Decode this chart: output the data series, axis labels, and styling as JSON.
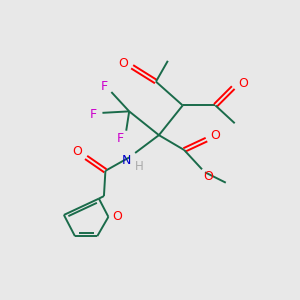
{
  "bg_color": "#e8e8e8",
  "bond_color": "#1a6b4a",
  "O_color": "#ff0000",
  "N_color": "#0000cc",
  "F_color": "#cc00cc",
  "H_color": "#aaaaaa",
  "figsize": [
    3.0,
    3.0
  ],
  "dpi": 100,
  "xlim": [
    0,
    10
  ],
  "ylim": [
    0,
    10
  ]
}
